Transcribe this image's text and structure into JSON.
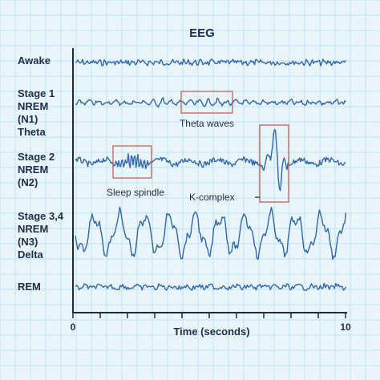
{
  "title": "EEG",
  "stages": [
    {
      "lines": [
        "Awake"
      ]
    },
    {
      "lines": [
        "Stage 1",
        "NREM",
        "(N1)",
        "Theta"
      ]
    },
    {
      "lines": [
        "Stage 2",
        "NREM",
        "(N2)"
      ]
    },
    {
      "lines": [
        "Stage 3,4",
        "NREM",
        "(N3)",
        "Delta"
      ]
    },
    {
      "lines": [
        "REM"
      ]
    }
  ],
  "annotations": {
    "theta": "Theta waves",
    "spindle": "Sleep spindle",
    "kcomplex": "K-complex"
  },
  "axis": {
    "xlabel": "Time (seconds)",
    "start": "0",
    "end": "10"
  },
  "colors": {
    "background": "#e9f5fb",
    "grid": "#bfe3f2",
    "trace": "#2f66ad",
    "box": "#c7544e",
    "axis": "#1f2a3a"
  }
}
